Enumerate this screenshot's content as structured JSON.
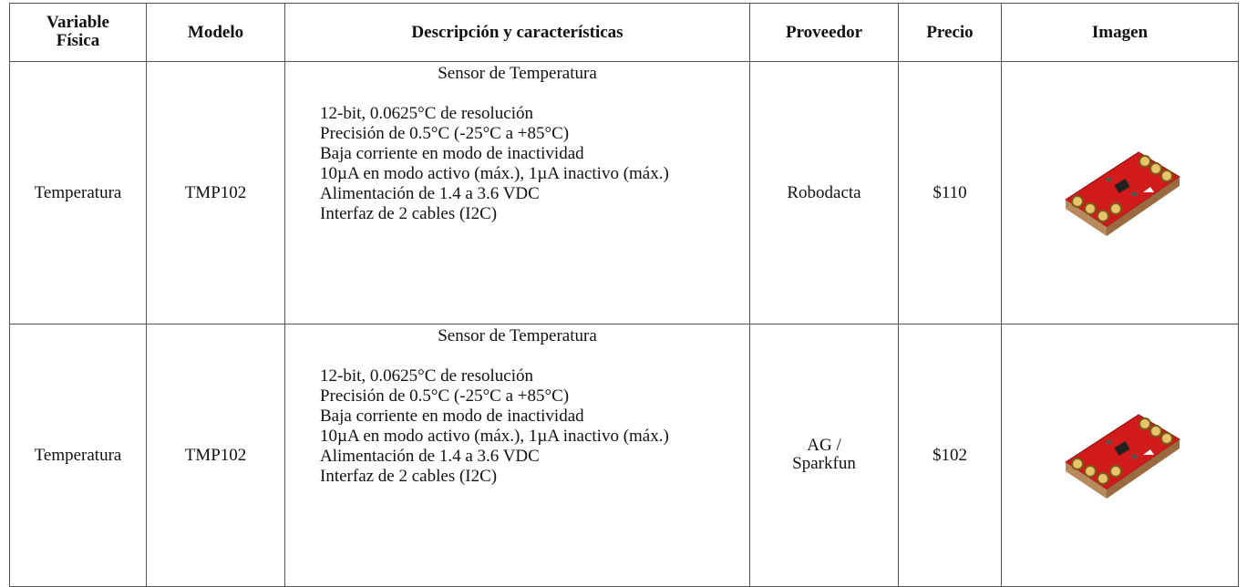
{
  "table": {
    "header": [
      "Variable Física",
      "Modelo",
      "Descripción y características",
      "Proveedor",
      "Precio",
      "Imagen"
    ],
    "rows": [
      {
        "variable": "Temperatura",
        "modelo": "TMP102",
        "descripcion": {
          "title": "Sensor de Temperatura",
          "lines": [
            "12-bit, 0.0625°C de resolución",
            "Precisión de 0.5°C (-25°C a +85°C)",
            "Baja corriente en modo de inactividad",
            "10µA en modo activo (máx.), 1µA inactivo (máx.)",
            "Alimentación de 1.4 a 3.6 VDC",
            "Interfaz de 2 cables (I2C)"
          ]
        },
        "proveedor": "Robodacta",
        "precio": "$110"
      },
      {
        "variable": "Temperatura",
        "modelo": "TMP102",
        "descripcion": {
          "title": "Sensor de Temperatura",
          "lines": [
            "12-bit, 0.0625°C de resolución",
            "Precisión de 0.5°C (-25°C a +85°C)",
            "Baja corriente en modo de inactividad",
            "10µA en modo activo (máx.), 1µA inactivo (máx.)",
            "Alimentación de 1.4 a 3.6 VDC",
            "Interfaz de 2 cables (I2C)"
          ]
        },
        "proveedor": "AG / Sparkfun",
        "precio": "$102"
      }
    ]
  }
}
